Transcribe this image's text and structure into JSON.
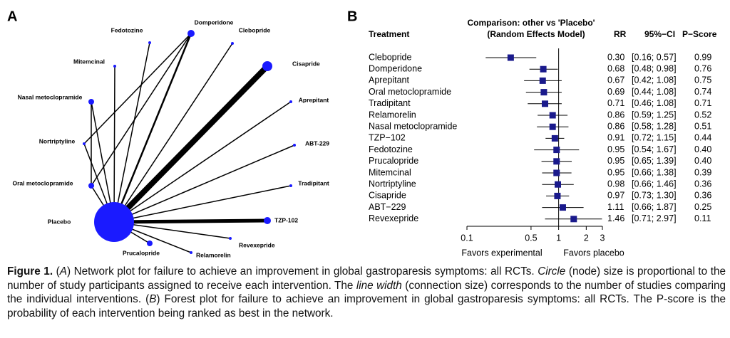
{
  "panel_a": {
    "label": "A",
    "nodes": [
      "Placebo",
      "Domperidone",
      "Fedotozine",
      "Clebopride",
      "Cisapride",
      "Mitemcinal",
      "Aprepitant",
      "Nasal metoclopramide",
      "ABT-229",
      "Nortriptyline",
      "Tradipitant",
      "Oral metoclopramide",
      "TZP-102",
      "Revexepride",
      "Relamorelin",
      "Prucalopride"
    ]
  },
  "panel_b": {
    "label": "B",
    "title_lines": [
      "Comparison: other vs 'Placebo'",
      "(Random Effects Model)"
    ],
    "columns": {
      "treatment": "Treatment",
      "rr": "RR",
      "ci": "95%−CI",
      "p_score": "P−Score"
    },
    "rows": [
      {
        "treatment": "Clebopride",
        "rr": 0.3,
        "rr_label": "0.30",
        "lower": 0.16,
        "upper": 0.57,
        "ci": "[0.16; 0.57]",
        "p_score": "0.99"
      },
      {
        "treatment": "Domperidone",
        "rr": 0.68,
        "rr_label": "0.68",
        "lower": 0.48,
        "upper": 0.98,
        "ci": "[0.48; 0.98]",
        "p_score": "0.76"
      },
      {
        "treatment": "Aprepitant",
        "rr": 0.67,
        "rr_label": "0.67",
        "lower": 0.42,
        "upper": 1.08,
        "ci": "[0.42; 1.08]",
        "p_score": "0.75"
      },
      {
        "treatment": "Oral metoclopramide",
        "rr": 0.69,
        "rr_label": "0.69",
        "lower": 0.44,
        "upper": 1.08,
        "ci": "[0.44; 1.08]",
        "p_score": "0.74"
      },
      {
        "treatment": "Tradipitant",
        "rr": 0.71,
        "rr_label": "0.71",
        "lower": 0.46,
        "upper": 1.08,
        "ci": "[0.46; 1.08]",
        "p_score": "0.71"
      },
      {
        "treatment": "Relamorelin",
        "rr": 0.86,
        "rr_label": "0.86",
        "lower": 0.59,
        "upper": 1.25,
        "ci": "[0.59; 1.25]",
        "p_score": "0.52"
      },
      {
        "treatment": "Nasal metoclopramide",
        "rr": 0.86,
        "rr_label": "0.86",
        "lower": 0.58,
        "upper": 1.28,
        "ci": "[0.58; 1.28]",
        "p_score": "0.51"
      },
      {
        "treatment": "TZP−102",
        "rr": 0.91,
        "rr_label": "0.91",
        "lower": 0.72,
        "upper": 1.15,
        "ci": "[0.72; 1.15]",
        "p_score": "0.44"
      },
      {
        "treatment": "Fedotozine",
        "rr": 0.95,
        "rr_label": "0.95",
        "lower": 0.54,
        "upper": 1.67,
        "ci": "[0.54; 1.67]",
        "p_score": "0.40"
      },
      {
        "treatment": "Prucalopride",
        "rr": 0.95,
        "rr_label": "0.95",
        "lower": 0.65,
        "upper": 1.39,
        "ci": "[0.65; 1.39]",
        "p_score": "0.40"
      },
      {
        "treatment": "Mitemcinal",
        "rr": 0.95,
        "rr_label": "0.95",
        "lower": 0.66,
        "upper": 1.38,
        "ci": "[0.66; 1.38]",
        "p_score": "0.39"
      },
      {
        "treatment": "Nortriptyline",
        "rr": 0.98,
        "rr_label": "0.98",
        "lower": 0.66,
        "upper": 1.46,
        "ci": "[0.66; 1.46]",
        "p_score": "0.36"
      },
      {
        "treatment": "Cisapride",
        "rr": 0.97,
        "rr_label": "0.97",
        "lower": 0.73,
        "upper": 1.3,
        "ci": "[0.73; 1.30]",
        "p_score": "0.36"
      },
      {
        "treatment": "ABT−229",
        "rr": 1.11,
        "rr_label": "1.11",
        "lower": 0.66,
        "upper": 1.87,
        "ci": "[0.66; 1.87]",
        "p_score": "0.25"
      },
      {
        "treatment": "Revexepride",
        "rr": 1.46,
        "rr_label": "1.46",
        "lower": 0.71,
        "upper": 2.97,
        "ci": "[0.71; 2.97]",
        "p_score": "0.11"
      }
    ],
    "xscale": "log",
    "xlim": [
      0.1,
      3
    ],
    "xticks": [
      0.1,
      0.5,
      1,
      2,
      3
    ],
    "left_label": "Favors experimental",
    "right_label": "Favors placebo"
  },
  "caption": {
    "label": "Figure 1.",
    "segments": [
      {
        "text": " (",
        "italic": false
      },
      {
        "text": "A",
        "italic": true
      },
      {
        "text": ") Network plot for failure to achieve an improvement in global gastroparesis symptoms: all RCTs. ",
        "italic": false
      },
      {
        "text": "Circle",
        "italic": true
      },
      {
        "text": " (node) size is proportional to the number of study participants assigned to receive each intervention. The ",
        "italic": false
      },
      {
        "text": "line width",
        "italic": true
      },
      {
        "text": " (connection size) corresponds to the number of studies comparing the individual interventions. (",
        "italic": false
      },
      {
        "text": "B",
        "italic": true
      },
      {
        "text": ") Forest plot for failure to achieve an improvement in global gastroparesis symptoms: all RCTs. The P-score is the probability of each intervention being ranked as best in the network.",
        "italic": false
      }
    ]
  }
}
